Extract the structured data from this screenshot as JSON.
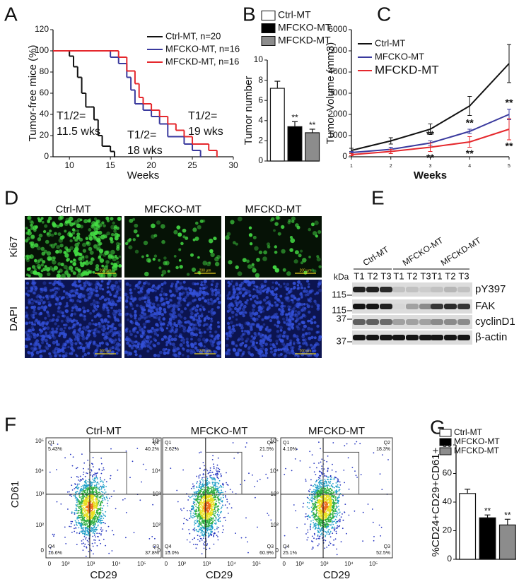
{
  "chart_data": [
    {
      "panel": "A",
      "type": "step",
      "xlabel": "Weeks",
      "ylabel": "Tumor-free mice (%)",
      "xlim": [
        8,
        30
      ],
      "xticks": [
        10,
        15,
        20,
        25,
        30
      ],
      "ylim": [
        0,
        120
      ],
      "yticks": [
        0,
        20,
        40,
        60,
        80,
        100,
        120
      ],
      "series": [
        {
          "name": "Ctrl-MT, n=20",
          "color": "#111111",
          "x": [
            8,
            10,
            10.5,
            11,
            11.5,
            12,
            12.5,
            13,
            13.5,
            14,
            15,
            15.5
          ],
          "values": [
            100,
            95,
            85,
            75,
            60,
            47,
            47,
            35,
            20,
            10,
            5,
            0
          ]
        },
        {
          "name": "MFCKO-MT, n=16",
          "color": "#3a3a9e",
          "x": [
            8,
            15,
            16,
            17,
            17.5,
            18,
            19,
            20,
            21,
            22,
            24,
            25,
            26
          ],
          "values": [
            100,
            94,
            88,
            75,
            63,
            50,
            44,
            38,
            31,
            19,
            12,
            6,
            0
          ]
        },
        {
          "name": "MFCKD-MT, n=16",
          "color": "#e5282d",
          "x": [
            8,
            15.5,
            16,
            17,
            18,
            18.5,
            19,
            20,
            21,
            22,
            23,
            24,
            25,
            27,
            28
          ],
          "values": [
            100,
            100,
            94,
            81,
            69,
            56,
            50,
            44,
            38,
            31,
            25,
            19,
            12,
            6,
            0
          ]
        }
      ],
      "annotations": [
        {
          "lines": [
            "T1/2=",
            "11.5 wks"
          ],
          "color": "#111111"
        },
        {
          "lines": [
            "T1/2=",
            "18 wks"
          ],
          "color": "#3a3a9e"
        },
        {
          "lines": [
            "T1/2=",
            "19 wks"
          ],
          "color": "#e5282d"
        }
      ]
    },
    {
      "panel": "B",
      "type": "bar",
      "ylabel": "Tumor number",
      "categories": [
        "Ctrl-MT",
        "MFCKO-MT",
        "MFCKD-MT"
      ],
      "values": [
        7.2,
        3.4,
        2.8
      ],
      "errors": [
        0.7,
        0.5,
        0.35
      ],
      "colors": [
        "#ffffff",
        "#000000",
        "#8c8c8c"
      ],
      "significance": [
        null,
        "**",
        "**"
      ],
      "ylim": [
        0,
        10
      ],
      "yticks": [
        0,
        2,
        4,
        6,
        8,
        10
      ]
    },
    {
      "panel": "C",
      "type": "line",
      "xlabel": "Weeks",
      "ylabel": "Tumor Volume (mm3)",
      "x": [
        1,
        2,
        3,
        4,
        5
      ],
      "xlim": [
        1,
        5
      ],
      "xticks": [
        1,
        2,
        3,
        4,
        5
      ],
      "ylim": [
        0,
        6000
      ],
      "yticks": [
        0,
        1000,
        2000,
        3000,
        4000,
        5000,
        6000
      ],
      "series": [
        {
          "name": "Ctrl-MT",
          "color": "#111111",
          "values": [
            300,
            750,
            1300,
            2400,
            4400
          ],
          "errors": [
            100,
            150,
            250,
            450,
            900
          ]
        },
        {
          "name": "MFCKO-MT",
          "color": "#3a3a9e",
          "values": [
            200,
            350,
            650,
            1200,
            2000
          ],
          "errors": [
            50,
            100,
            100,
            100,
            250
          ],
          "significance": [
            null,
            null,
            "**",
            "**",
            "**"
          ]
        },
        {
          "name": "MFCKD-MT",
          "color": "#e5282d",
          "values": [
            100,
            250,
            450,
            700,
            1300
          ],
          "errors": [
            50,
            100,
            200,
            250,
            500
          ],
          "significance": [
            null,
            null,
            "**",
            "**",
            "**"
          ]
        }
      ]
    },
    {
      "panel": "G",
      "type": "bar",
      "ylabel": "%CD24+CD29+CD61+",
      "categories": [
        "Ctrl-MT",
        "MFCKO-MT",
        "MFCKD-MT"
      ],
      "values": [
        46,
        29,
        24
      ],
      "errors": [
        3,
        2,
        4
      ],
      "colors": [
        "#ffffff",
        "#000000",
        "#8c8c8c"
      ],
      "significance": [
        null,
        "**",
        "**"
      ],
      "ylim": [
        0,
        80
      ],
      "yticks": [
        0,
        20,
        40,
        60,
        80
      ]
    }
  ],
  "micrographs": {
    "panel": "D",
    "columns": [
      "Ctrl-MT",
      "MFCKO-MT",
      "MFCKD-MT"
    ],
    "rows": [
      "Ki67",
      "DAPI"
    ],
    "scale_bar": "200 µm"
  },
  "western": {
    "panel": "E",
    "units": "kDa",
    "groups": [
      {
        "name": "Ctrl-MT",
        "lanes": [
          "T1",
          "T2",
          "T3"
        ]
      },
      {
        "name": "MFCKO-MT",
        "lanes": [
          "T1",
          "T2",
          "T3"
        ]
      },
      {
        "name": "MFCKD-MT",
        "lanes": [
          "T1",
          "T2",
          "T3"
        ]
      }
    ],
    "markers": [
      "115",
      "115",
      "37",
      "37"
    ],
    "proteins": [
      "pY397",
      "FAK",
      "cyclinD1",
      "β-actin"
    ]
  },
  "flow": {
    "panel": "F",
    "xlabel": "CD29",
    "ylabel": "CD61",
    "xticks": [
      "0",
      "10²",
      "10³",
      "10⁴",
      "10⁵"
    ],
    "yticks": [
      "10⁵",
      "10⁴",
      "10³",
      "10²",
      "0"
    ],
    "plots": [
      {
        "title": "Ctrl-MT",
        "quadrants": [
          {
            "name": "Q1",
            "percent": "5.43%"
          },
          {
            "name": "Q2",
            "percent": "40.2%"
          },
          {
            "name": "Q3",
            "percent": "37.8%"
          },
          {
            "name": "Q4",
            "percent": "16.6%"
          }
        ]
      },
      {
        "title": "MFCKO-MT",
        "quadrants": [
          {
            "name": "Q1",
            "percent": "2.62%"
          },
          {
            "name": "Q2",
            "percent": "21.5%"
          },
          {
            "name": "Q3",
            "percent": "60.9%"
          },
          {
            "name": "Q4",
            "percent": "15.0%"
          }
        ]
      },
      {
        "title": "MFCKD-MT",
        "quadrants": [
          {
            "name": "Q1",
            "percent": "4.10%"
          },
          {
            "name": "Q2",
            "percent": "18.3%"
          },
          {
            "name": "Q3",
            "percent": "52.5%"
          },
          {
            "name": "Q4",
            "percent": "25.1%"
          }
        ]
      }
    ]
  }
}
